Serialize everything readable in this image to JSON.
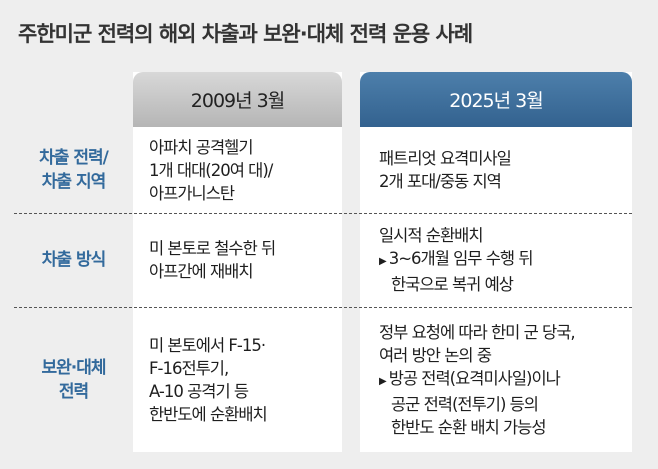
{
  "title": "주한미군 전력의 해외 차출과 보완·대체 전력 운용 사례",
  "columns": [
    "2009년 3월",
    "2025년 3월"
  ],
  "rows": [
    {
      "label": [
        "차출 전력/",
        "차출 지역"
      ],
      "col1": [
        "아파치 공격헬기",
        "1개 대대(20여 대)/",
        "아프가니스탄"
      ],
      "col2": [
        "패트리엇 요격미사일",
        "2개 포대/중동 지역"
      ]
    },
    {
      "label": [
        "차출 방식"
      ],
      "col1": [
        "미 본토로 철수한 뒤",
        "아프간에 재배치"
      ],
      "col2": [
        "일시적 순환배치"
      ],
      "col2_note": [
        "3~6개월 임무 수행 뒤",
        "한국으로 복귀 예상"
      ]
    },
    {
      "label": [
        "보완·대체",
        "전력"
      ],
      "col1": [
        "미 본토에서 F-15·",
        "F-16전투기,",
        "A-10 공격기 등",
        "한반도에 순환배치"
      ],
      "col2": [
        "정부 요청에 따라 한미 군 당국,",
        "여러 방안 논의 중"
      ],
      "col2_note": [
        "방공 전력(요격미사일)이나",
        "공군 전력(전투기) 등의",
        "한반도 순환 배치 가능성"
      ]
    }
  ],
  "colors": {
    "label": "#336a9c",
    "header_2025": "#3d6e9a",
    "header_2009": "#c4c4c4"
  }
}
